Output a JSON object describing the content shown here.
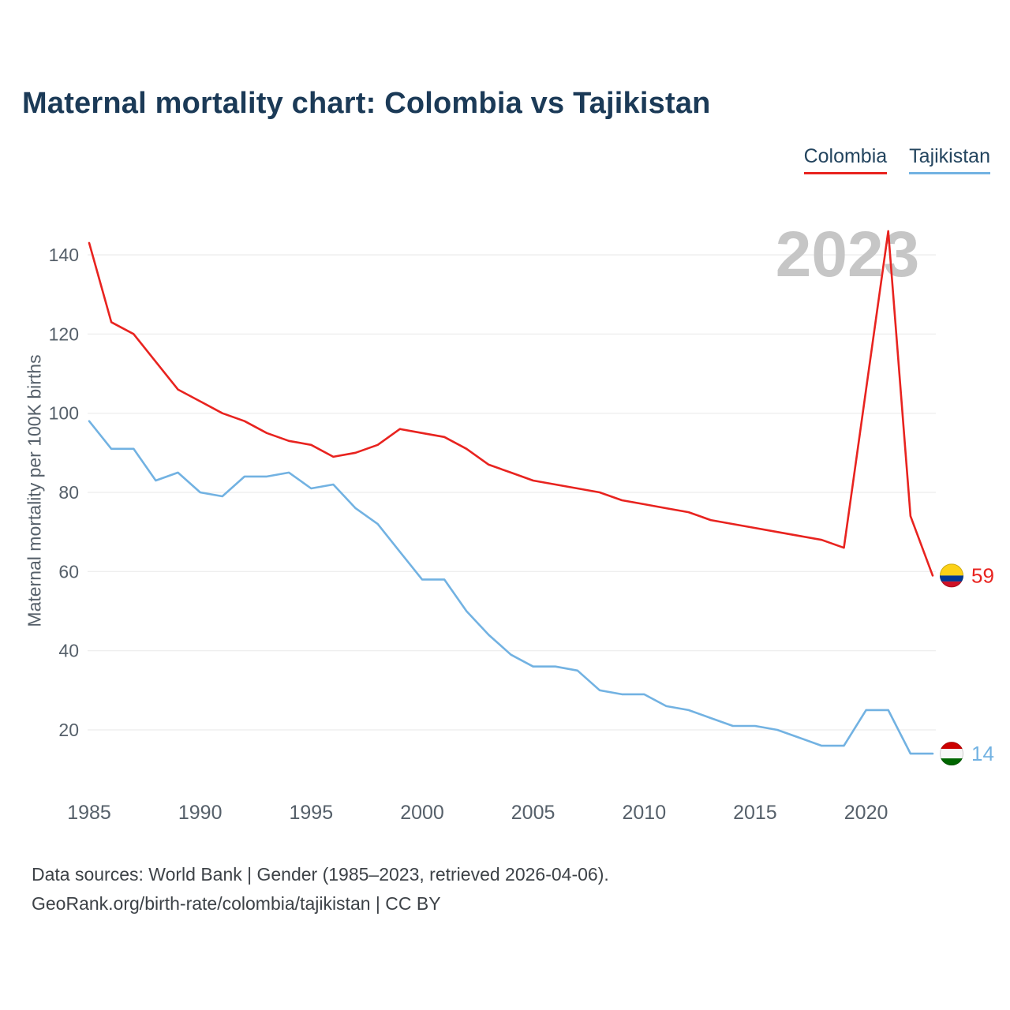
{
  "title": "Maternal mortality chart: Colombia vs Tajikistan",
  "watermark": "2023",
  "ylabel": "Maternal mortality per 100K births",
  "legend": [
    {
      "label": "Colombia",
      "color": "#e8231f"
    },
    {
      "label": "Tajikistan",
      "color": "#72b2e2"
    }
  ],
  "footer_line1": "Data sources: World Bank | Gender (1985–2023, retrieved 2026-04-06).",
  "footer_line2": "GeoRank.org/birth-rate/colombia/tajikistan | CC BY",
  "chart_data": {
    "type": "line",
    "title": "Maternal mortality chart: Colombia vs Tajikistan",
    "xlabel": "",
    "ylabel": "Maternal mortality per 100K births",
    "xlim": [
      1985,
      2023
    ],
    "ylim": [
      10,
      148
    ],
    "grid": true,
    "legend_position": "top-right",
    "watermark": "2023",
    "xticks": [
      1985,
      1990,
      1995,
      2000,
      2005,
      2010,
      2015,
      2020
    ],
    "yticks": [
      20,
      40,
      60,
      80,
      100,
      120,
      140
    ],
    "x": [
      1985,
      1986,
      1987,
      1988,
      1989,
      1990,
      1991,
      1992,
      1993,
      1994,
      1995,
      1996,
      1997,
      1998,
      1999,
      2000,
      2001,
      2002,
      2003,
      2004,
      2005,
      2006,
      2007,
      2008,
      2009,
      2010,
      2011,
      2012,
      2013,
      2014,
      2015,
      2016,
      2017,
      2018,
      2019,
      2020,
      2021,
      2022,
      2023
    ],
    "series": [
      {
        "name": "Colombia",
        "color": "#e8231f",
        "end_label": "59",
        "marker_icon": "colombia-flag-icon",
        "flag_stripes": [
          {
            "color": "#FCD116",
            "frac": 0.5
          },
          {
            "color": "#003893",
            "frac": 0.25
          },
          {
            "color": "#CE1126",
            "frac": 0.25
          }
        ],
        "values": [
          143,
          123,
          120,
          113,
          106,
          103,
          100,
          98,
          95,
          93,
          92,
          89,
          90,
          92,
          96,
          95,
          94,
          91,
          87,
          85,
          83,
          82,
          81,
          80,
          78,
          77,
          76,
          75,
          73,
          72,
          71,
          70,
          69,
          68,
          66,
          106,
          146,
          74,
          59
        ]
      },
      {
        "name": "Tajikistan",
        "color": "#72b2e2",
        "end_label": "14",
        "marker_icon": "tajikistan-flag-icon",
        "flag_stripes": [
          {
            "color": "#CC0000",
            "frac": 0.3
          },
          {
            "color": "#F7F7F7",
            "frac": 0.4
          },
          {
            "color": "#006600",
            "frac": 0.3
          }
        ],
        "values": [
          98,
          91,
          91,
          83,
          85,
          80,
          79,
          84,
          84,
          85,
          81,
          82,
          76,
          72,
          65,
          58,
          58,
          50,
          44,
          39,
          36,
          36,
          35,
          30,
          29,
          29,
          26,
          25,
          23,
          21,
          21,
          20,
          18,
          16,
          16,
          25,
          25,
          14,
          14
        ]
      }
    ]
  }
}
